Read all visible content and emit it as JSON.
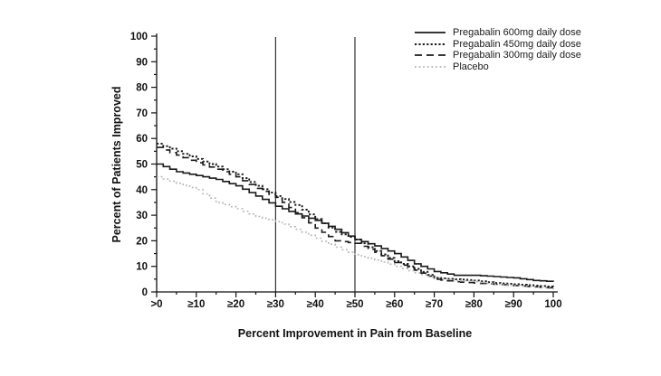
{
  "figure": {
    "background": "#ffffff",
    "axis_color": "#111111",
    "reference_line_color": "#333333"
  },
  "chart_data": {
    "type": "line",
    "title": "",
    "xlabel": "Percent Improvement in Pain from Baseline",
    "ylabel": "Percent of Patients Improved",
    "xlim": [
      0,
      100
    ],
    "ylim": [
      0,
      100
    ],
    "grid": false,
    "legend_position": "top-right",
    "x_tick_values": [
      0,
      10,
      20,
      30,
      40,
      50,
      60,
      70,
      80,
      90,
      100
    ],
    "x_tick_labels": [
      ">0",
      "≥10",
      "≥20",
      "≥30",
      "≥40",
      "≥50",
      "≥60",
      "≥70",
      "≥80",
      "≥90",
      "100"
    ],
    "y_tick_values": [
      0,
      10,
      20,
      30,
      40,
      50,
      60,
      70,
      80,
      90,
      100
    ],
    "minor_tick_step": 5,
    "reference_lines_x": [
      30,
      50
    ],
    "x": [
      0,
      5,
      10,
      15,
      20,
      25,
      30,
      35,
      40,
      45,
      50,
      55,
      60,
      65,
      70,
      75,
      80,
      85,
      90,
      95,
      100
    ],
    "series": [
      {
        "name": "Pregabalin 600mg daily dose",
        "style": "solid",
        "color": "#1a1a1a",
        "width": 1.6,
        "values": [
          50,
          47,
          45.5,
          44,
          41.5,
          37.5,
          33.5,
          30.5,
          28,
          24.5,
          20.5,
          18,
          15,
          11,
          8,
          6.5,
          6.5,
          6,
          5.5,
          4.5,
          4
        ]
      },
      {
        "name": "Pregabalin 450mg daily dose",
        "style": "dotted",
        "color": "#1a1a1a",
        "width": 1.9,
        "values": [
          58,
          55,
          52,
          49,
          46,
          41.5,
          37.5,
          34,
          28.5,
          23.5,
          20.5,
          16,
          12,
          9,
          5.5,
          5,
          4.5,
          3.5,
          3,
          2.5,
          2
        ]
      },
      {
        "name": "Pregabalin 300mg daily dose",
        "style": "dashed",
        "color": "#1a1a1a",
        "width": 1.6,
        "values": [
          56.5,
          53.5,
          50.5,
          48,
          45,
          40.5,
          37,
          31,
          25,
          20,
          19,
          15.5,
          11.5,
          8.5,
          5,
          4,
          3.5,
          3,
          2.5,
          2,
          1.5
        ]
      },
      {
        "name": "Placebo",
        "style": "dotted-light",
        "color": "#b3b3b3",
        "width": 1.6,
        "values": [
          45,
          42.5,
          40,
          35,
          32.5,
          29.5,
          27.5,
          24.5,
          21,
          17.5,
          14.5,
          12.5,
          10,
          7.5,
          5.5,
          4.5,
          4,
          3,
          2.5,
          2,
          1
        ]
      }
    ]
  }
}
